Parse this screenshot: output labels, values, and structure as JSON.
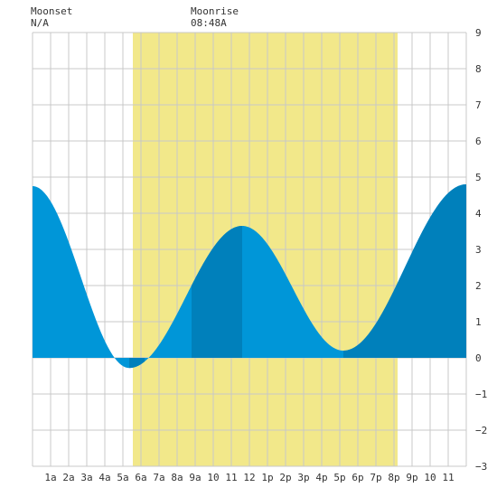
{
  "header": {
    "moonset_label": "Moonset",
    "moonset_value": "N/A",
    "moonrise_label": "Moonrise",
    "moonrise_value": "08:48A"
  },
  "colors": {
    "daylight": "#f2e88a",
    "tide_light": "#0096d8",
    "tide_dark": "#0080bb",
    "grid": "#c8c8c8",
    "axis_text": "#333333"
  },
  "chart_data": {
    "type": "area",
    "title": "",
    "xlabel": "",
    "ylabel": "",
    "xlim": [
      0,
      24
    ],
    "ylim": [
      -3,
      9
    ],
    "y_ticks": [
      9,
      8,
      7,
      6,
      5,
      4,
      3,
      2,
      1,
      0,
      -1,
      -2,
      -3
    ],
    "x_tick_labels": [
      {
        "x": 1,
        "label": "1a"
      },
      {
        "x": 2,
        "label": "2a"
      },
      {
        "x": 3,
        "label": "3a"
      },
      {
        "x": 4,
        "label": "4a"
      },
      {
        "x": 5,
        "label": "5a"
      },
      {
        "x": 6,
        "label": "6a"
      },
      {
        "x": 7,
        "label": "7a"
      },
      {
        "x": 8,
        "label": "8a"
      },
      {
        "x": 9,
        "label": "9a"
      },
      {
        "x": 10,
        "label": "10"
      },
      {
        "x": 11,
        "label": "11"
      },
      {
        "x": 12,
        "label": "12"
      },
      {
        "x": 13,
        "label": "1p"
      },
      {
        "x": 14,
        "label": "2p"
      },
      {
        "x": 15,
        "label": "3p"
      },
      {
        "x": 16,
        "label": "4p"
      },
      {
        "x": 17,
        "label": "5p"
      },
      {
        "x": 18,
        "label": "6p"
      },
      {
        "x": 19,
        "label": "7p"
      },
      {
        "x": 20,
        "label": "8p"
      },
      {
        "x": 21,
        "label": "9p"
      },
      {
        "x": 22,
        "label": "10"
      },
      {
        "x": 23,
        "label": "11"
      }
    ],
    "daylight_span": [
      5.55,
      20.2
    ],
    "tide_extremes": [
      {
        "x": 0.0,
        "y": 4.75
      },
      {
        "x": 5.35,
        "y": -0.28
      },
      {
        "x": 11.6,
        "y": 3.65
      },
      {
        "x": 17.2,
        "y": 0.2
      },
      {
        "x": 24.0,
        "y": 4.8
      }
    ],
    "dark_segments": [
      [
        5.35,
        6.2
      ],
      [
        8.8,
        11.6
      ],
      [
        17.2,
        24.0
      ]
    ],
    "grid": true
  }
}
